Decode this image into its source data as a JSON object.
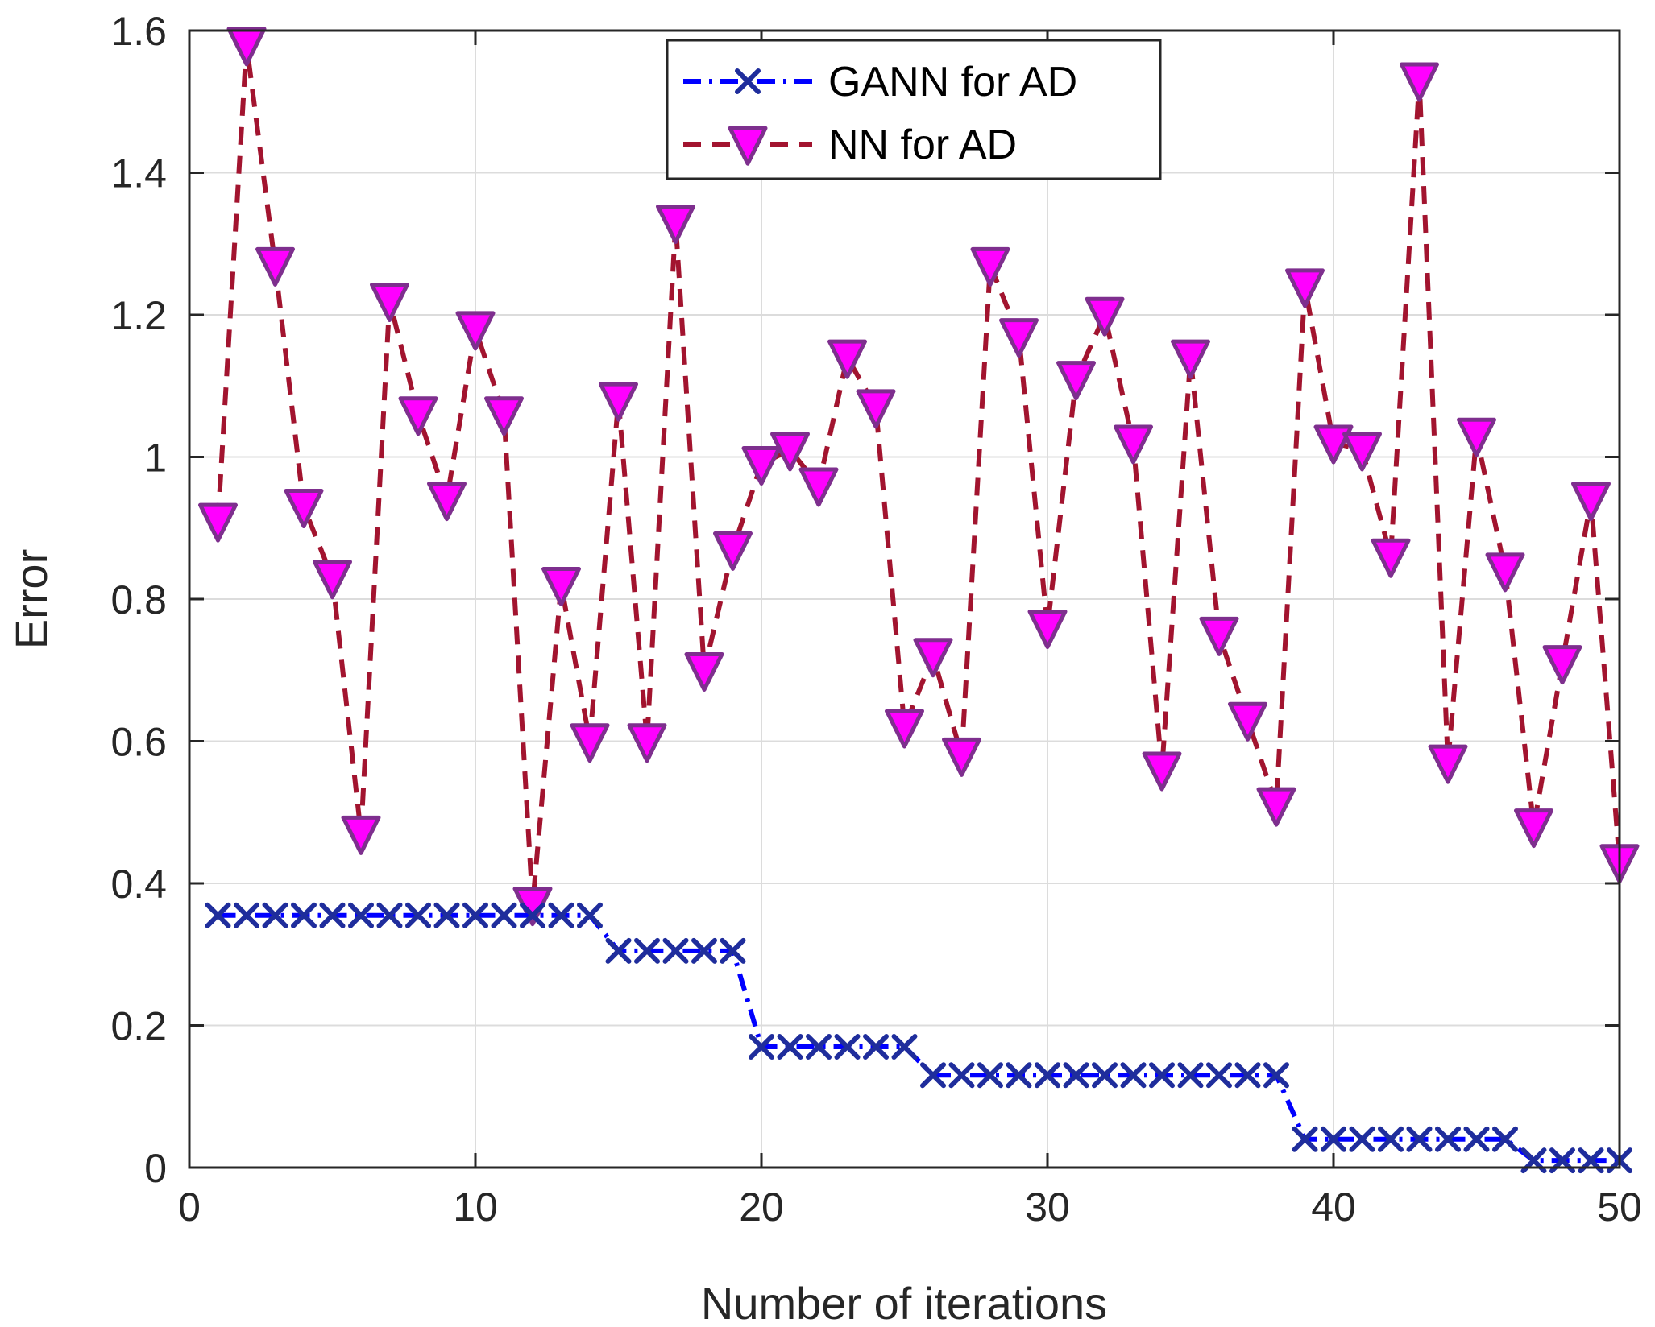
{
  "chart_data": {
    "type": "line",
    "title": "",
    "xlabel": "Number of iterations",
    "ylabel": "Error",
    "xlim": [
      0,
      50
    ],
    "ylim": [
      0,
      1.6
    ],
    "xticks": [
      0,
      10,
      20,
      30,
      40,
      50
    ],
    "yticks": [
      0,
      0.2,
      0.4,
      0.6,
      0.8,
      1,
      1.2,
      1.4,
      1.6
    ],
    "xtick_labels": [
      "0",
      "10",
      "20",
      "30",
      "40",
      "50"
    ],
    "ytick_labels": [
      "0",
      "0.2",
      "0.4",
      "0.6",
      "0.8",
      "1",
      "1.2",
      "1.4",
      "1.6"
    ],
    "grid": true,
    "legend_position": "top-center",
    "x": [
      1,
      2,
      3,
      4,
      5,
      6,
      7,
      8,
      9,
      10,
      11,
      12,
      13,
      14,
      15,
      16,
      17,
      18,
      19,
      20,
      21,
      22,
      23,
      24,
      25,
      26,
      27,
      28,
      29,
      30,
      31,
      32,
      33,
      34,
      35,
      36,
      37,
      38,
      39,
      40,
      41,
      42,
      43,
      44,
      45,
      46,
      47,
      48,
      49,
      50
    ],
    "series": [
      {
        "name": "GANN for AD",
        "line_color": "#0000ff",
        "marker_color": "#1f2d9c",
        "marker": "x",
        "line_style": "dash-dot",
        "values": [
          0.355,
          0.355,
          0.355,
          0.355,
          0.355,
          0.355,
          0.355,
          0.355,
          0.355,
          0.355,
          0.355,
          0.355,
          0.355,
          0.355,
          0.305,
          0.305,
          0.305,
          0.305,
          0.305,
          0.17,
          0.17,
          0.17,
          0.17,
          0.17,
          0.17,
          0.13,
          0.13,
          0.13,
          0.13,
          0.13,
          0.13,
          0.13,
          0.13,
          0.13,
          0.13,
          0.13,
          0.13,
          0.13,
          0.04,
          0.04,
          0.04,
          0.04,
          0.04,
          0.04,
          0.04,
          0.04,
          0.01,
          0.01,
          0.01,
          0.01
        ]
      },
      {
        "name": "NN for AD",
        "line_color": "#a2142f",
        "marker_color": "#ff00ff",
        "marker_edge": "#7e2f8e",
        "marker": "triangle-down",
        "line_style": "dashed",
        "values": [
          0.91,
          1.58,
          1.27,
          0.93,
          0.83,
          0.47,
          1.22,
          1.06,
          0.94,
          1.18,
          1.06,
          0.37,
          0.82,
          0.6,
          1.08,
          0.6,
          1.33,
          0.7,
          0.87,
          0.99,
          1.01,
          0.96,
          1.14,
          1.07,
          0.62,
          0.72,
          0.58,
          1.27,
          1.17,
          0.76,
          1.11,
          1.2,
          1.02,
          0.56,
          1.14,
          0.75,
          0.63,
          0.51,
          1.24,
          1.02,
          1.01,
          0.86,
          1.53,
          0.57,
          1.03,
          0.84,
          0.48,
          0.71,
          0.94,
          0.43
        ]
      }
    ]
  }
}
